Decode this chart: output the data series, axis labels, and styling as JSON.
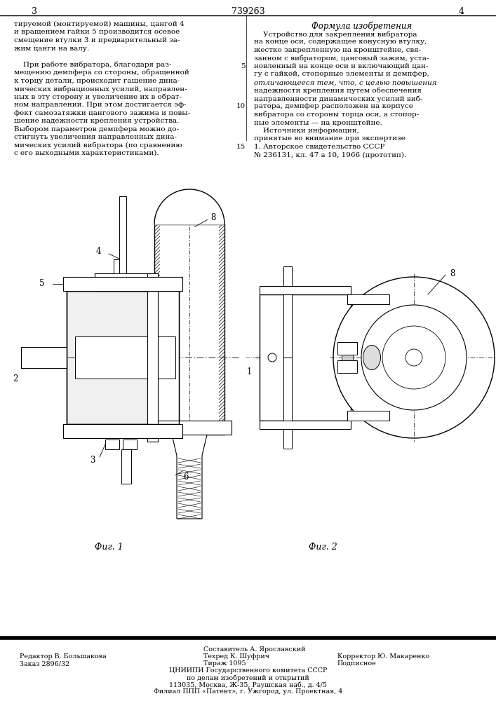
{
  "page_number_left": "3",
  "page_number_right": "4",
  "patent_number": "739263",
  "bg_color": "#ffffff",
  "text_color": "#000000",
  "fig1_caption": "Фиг. 1",
  "fig2_caption": "Фиг. 2",
  "formula_title": "Формула изобретения"
}
